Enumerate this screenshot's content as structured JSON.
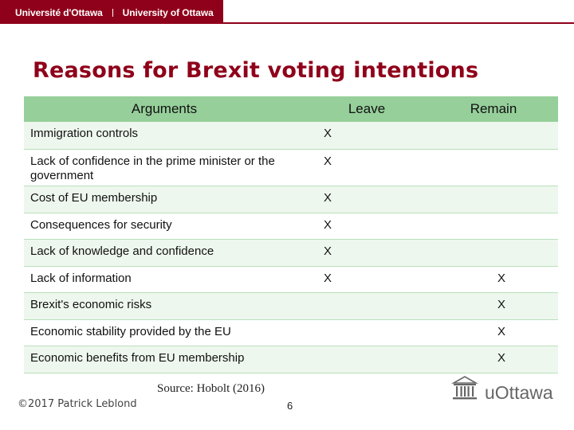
{
  "header": {
    "uni_fr": "Université d'Ottawa",
    "uni_en": "University of Ottawa"
  },
  "slide": {
    "title": "Reasons for Brexit voting intentions",
    "source": "Source: Hobolt (2016)",
    "copyright": "©2017 Patrick Leblond",
    "page_number": "6",
    "logo_text": "uOttawa",
    "logo_icon": "building-columns-icon"
  },
  "table": {
    "headers": [
      "Arguments",
      "Leave",
      "Remain"
    ],
    "rows": [
      {
        "argument": "Immigration controls",
        "leave": "X",
        "remain": ""
      },
      {
        "argument": "Lack of confidence in the prime minister or the government",
        "leave": "X",
        "remain": ""
      },
      {
        "argument": "Cost of EU membership",
        "leave": "X",
        "remain": ""
      },
      {
        "argument": "Consequences for security",
        "leave": "X",
        "remain": ""
      },
      {
        "argument": "Lack of knowledge and confidence",
        "leave": "X",
        "remain": ""
      },
      {
        "argument": "Lack of information",
        "leave": "X",
        "remain": "X"
      },
      {
        "argument": "Brexit's economic risks",
        "leave": "",
        "remain": "X"
      },
      {
        "argument": "Economic stability provided by the EU",
        "leave": "",
        "remain": "X"
      },
      {
        "argument": "Economic benefits from EU membership",
        "leave": "",
        "remain": "X"
      }
    ]
  },
  "colors": {
    "brand": "#8f001a",
    "header_fill": "#96cf9a",
    "row_alt": "#eef7ee",
    "row_rule": "#b8e0bb"
  }
}
